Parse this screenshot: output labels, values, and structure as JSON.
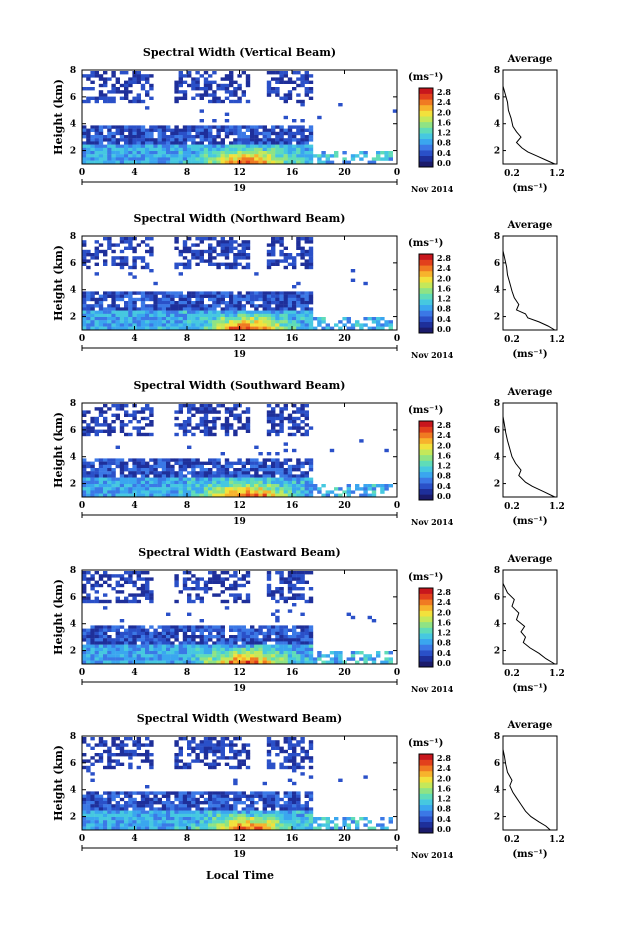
{
  "xlabel": "Local Time",
  "date_label": "Nov 2014",
  "day_label": "19",
  "colorbar_unit": "(ms⁻¹)",
  "colorbar_colors": [
    "#1b1b6b",
    "#1e2f9a",
    "#2a50c8",
    "#3b78e6",
    "#3aa6ef",
    "#46c8e0",
    "#5fdcb8",
    "#8fe384",
    "#c4e85a",
    "#f2e13c",
    "#f7b32c",
    "#f07a22",
    "#e2401c",
    "#c8161c"
  ],
  "chart_data": [
    {
      "type": "heatmap",
      "title": "Spectral Width (Vertical Beam)",
      "ylabel": "Height (km)",
      "xlim": [
        0,
        24
      ],
      "ylim": [
        1,
        8
      ],
      "xticks": [
        "0",
        "4",
        "8",
        "12",
        "16",
        "20",
        "0"
      ],
      "yticks": [
        "2",
        "4",
        "6",
        "8"
      ],
      "colorbar_ticks": [
        "0.0",
        "0.4",
        "0.8",
        "1.2",
        "1.6",
        "2.0",
        "2.4",
        "2.8"
      ],
      "average": {
        "title": "Average",
        "xlabel": "(ms⁻¹)",
        "xticks": [
          "0.2",
          "1.2"
        ],
        "yticks": [
          "2",
          "4",
          "6",
          "8"
        ],
        "profile": [
          [
            1.15,
            1.0
          ],
          [
            0.95,
            1.3
          ],
          [
            0.75,
            1.6
          ],
          [
            0.55,
            1.9
          ],
          [
            0.42,
            2.2
          ],
          [
            0.3,
            2.6
          ],
          [
            0.4,
            3.0
          ],
          [
            0.3,
            3.4
          ],
          [
            0.22,
            3.8
          ],
          [
            0.18,
            4.4
          ],
          [
            0.12,
            5.0
          ],
          [
            0.1,
            5.6
          ],
          [
            0.05,
            6.2
          ],
          [
            0.0,
            6.8
          ]
        ]
      }
    },
    {
      "type": "heatmap",
      "title": "Spectral Width (Northward Beam)",
      "ylabel": "Height (km)",
      "xlim": [
        0,
        24
      ],
      "ylim": [
        1,
        8
      ],
      "xticks": [
        "0",
        "4",
        "8",
        "12",
        "16",
        "20",
        "0"
      ],
      "yticks": [
        "2",
        "4",
        "6",
        "8"
      ],
      "colorbar_ticks": [
        "0.0",
        "0.4",
        "0.8",
        "1.2",
        "1.6",
        "2.0",
        "2.4",
        "2.8"
      ],
      "average": {
        "title": "Average",
        "xlabel": "(ms⁻¹)",
        "xticks": [
          "0.2",
          "1.2"
        ],
        "yticks": [
          "2",
          "4",
          "6",
          "8"
        ],
        "profile": [
          [
            1.15,
            1.0
          ],
          [
            1.0,
            1.3
          ],
          [
            0.8,
            1.6
          ],
          [
            0.55,
            1.9
          ],
          [
            0.5,
            2.2
          ],
          [
            0.3,
            2.5
          ],
          [
            0.35,
            2.9
          ],
          [
            0.25,
            3.4
          ],
          [
            0.2,
            3.9
          ],
          [
            0.15,
            4.5
          ],
          [
            0.1,
            5.1
          ],
          [
            0.08,
            5.7
          ],
          [
            0.04,
            6.3
          ],
          [
            0.0,
            6.9
          ]
        ]
      }
    },
    {
      "type": "heatmap",
      "title": "Spectral Width (Southward Beam)",
      "ylabel": "Height (km)",
      "xlim": [
        0,
        24
      ],
      "ylim": [
        1,
        8
      ],
      "xticks": [
        "0",
        "4",
        "8",
        "12",
        "16",
        "20",
        "0"
      ],
      "yticks": [
        "2",
        "4",
        "6",
        "8"
      ],
      "colorbar_ticks": [
        "0.0",
        "0.4",
        "0.8",
        "1.2",
        "1.6",
        "2.0",
        "2.4",
        "2.8"
      ],
      "average": {
        "title": "Average",
        "xlabel": "(ms⁻¹)",
        "xticks": [
          "0.2",
          "1.2"
        ],
        "yticks": [
          "2",
          "4",
          "6",
          "8"
        ],
        "profile": [
          [
            1.15,
            1.0
          ],
          [
            0.9,
            1.4
          ],
          [
            0.65,
            1.8
          ],
          [
            0.5,
            2.1
          ],
          [
            0.35,
            2.6
          ],
          [
            0.4,
            3.0
          ],
          [
            0.28,
            3.5
          ],
          [
            0.2,
            4.0
          ],
          [
            0.15,
            4.6
          ],
          [
            0.1,
            5.2
          ],
          [
            0.06,
            5.8
          ],
          [
            0.03,
            6.4
          ],
          [
            0.0,
            7.0
          ]
        ]
      }
    },
    {
      "type": "heatmap",
      "title": "Spectral Width (Eastward Beam)",
      "ylabel": "Height (km)",
      "xlim": [
        0,
        24
      ],
      "ylim": [
        1,
        8
      ],
      "xticks": [
        "0",
        "4",
        "8",
        "12",
        "16",
        "20",
        "0"
      ],
      "yticks": [
        "2",
        "4",
        "6",
        "8"
      ],
      "colorbar_ticks": [
        "0.0",
        "0.4",
        "0.8",
        "1.2",
        "1.6",
        "2.0",
        "2.4",
        "2.8"
      ],
      "average": {
        "title": "Average",
        "xlabel": "(ms⁻¹)",
        "xticks": [
          "0.2",
          "1.2"
        ],
        "yticks": [
          "2",
          "4",
          "6",
          "8"
        ],
        "profile": [
          [
            1.15,
            1.0
          ],
          [
            0.95,
            1.4
          ],
          [
            0.8,
            1.8
          ],
          [
            0.6,
            2.2
          ],
          [
            0.45,
            2.6
          ],
          [
            0.5,
            3.0
          ],
          [
            0.4,
            3.4
          ],
          [
            0.48,
            3.8
          ],
          [
            0.3,
            4.3
          ],
          [
            0.35,
            4.8
          ],
          [
            0.2,
            5.3
          ],
          [
            0.25,
            5.8
          ],
          [
            0.1,
            6.3
          ],
          [
            0.0,
            7.0
          ]
        ]
      }
    },
    {
      "type": "heatmap",
      "title": "Spectral Width (Westward Beam)",
      "ylabel": "Height (km)",
      "xlim": [
        0,
        24
      ],
      "ylim": [
        1,
        8
      ],
      "xticks": [
        "0",
        "4",
        "8",
        "12",
        "16",
        "20",
        "0"
      ],
      "yticks": [
        "2",
        "4",
        "6",
        "8"
      ],
      "colorbar_ticks": [
        "0.0",
        "0.4",
        "0.8",
        "1.2",
        "1.6",
        "2.0",
        "2.4",
        "2.8"
      ],
      "average": {
        "title": "Average",
        "xlabel": "(ms⁻¹)",
        "xticks": [
          "0.2",
          "1.2"
        ],
        "yticks": [
          "2",
          "4",
          "6",
          "8"
        ],
        "profile": [
          [
            1.05,
            1.0
          ],
          [
            0.95,
            1.3
          ],
          [
            0.8,
            1.6
          ],
          [
            0.62,
            2.0
          ],
          [
            0.5,
            2.4
          ],
          [
            0.4,
            2.9
          ],
          [
            0.3,
            3.4
          ],
          [
            0.22,
            3.8
          ],
          [
            0.15,
            4.3
          ],
          [
            0.2,
            4.7
          ],
          [
            0.1,
            5.3
          ],
          [
            0.06,
            5.9
          ],
          [
            0.03,
            6.5
          ],
          [
            0.0,
            7.0
          ]
        ]
      }
    }
  ]
}
